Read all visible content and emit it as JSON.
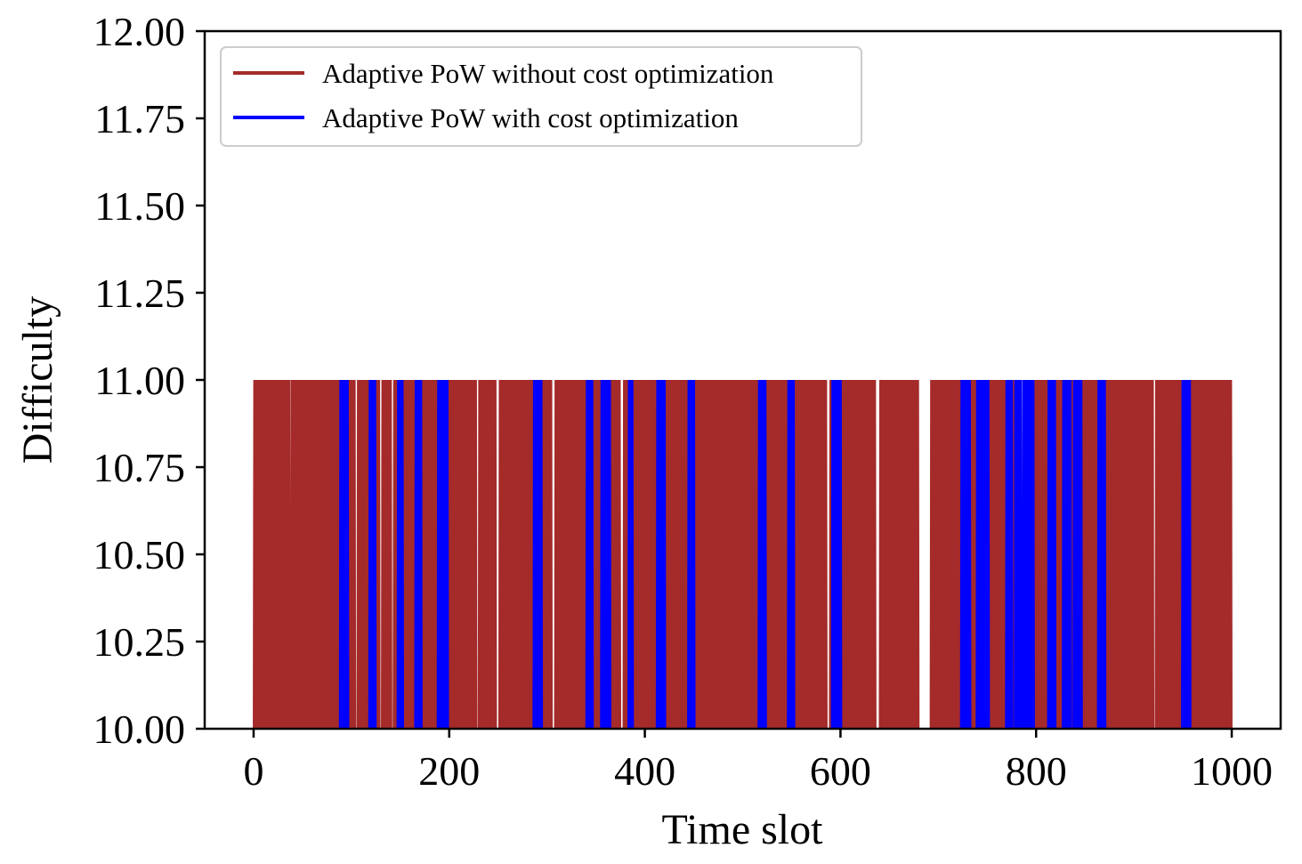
{
  "chart_data": {
    "type": "line",
    "title": "",
    "xlabel": "Time slot",
    "ylabel": "Difficulty",
    "xlim": [
      -50,
      1050
    ],
    "ylim": [
      10.0,
      12.0
    ],
    "x_ticks": [
      0,
      200,
      400,
      600,
      800,
      1000
    ],
    "x_tick_labels": [
      "0",
      "200",
      "400",
      "600",
      "800",
      "1000"
    ],
    "y_ticks": [
      10.0,
      10.25,
      10.5,
      10.75,
      11.0,
      11.25,
      11.5,
      11.75,
      12.0
    ],
    "y_tick_labels": [
      "10.00",
      "10.25",
      "10.50",
      "10.75",
      "11.00",
      "11.25",
      "11.50",
      "11.75",
      "12.00"
    ],
    "legend_position": "upper-left",
    "grid": false,
    "series": [
      {
        "name": "Adaptive PoW without cost optimization",
        "color": "#a52a2a",
        "description": "Oscillates between difficulty 10 and 11 at almost every time slot",
        "low_value": 10.0,
        "high_value": 11.0,
        "x_start": 0,
        "x_end": 1000,
        "gaps_at_low": [
          [
            37,
            38
          ],
          [
            104,
            106
          ],
          [
            129,
            131
          ],
          [
            141,
            143
          ],
          [
            228,
            230
          ],
          [
            248,
            251
          ],
          [
            305,
            308
          ],
          [
            375,
            378
          ],
          [
            586,
            589
          ],
          [
            636,
            640
          ],
          [
            680,
            692
          ],
          [
            784,
            786
          ],
          [
            920,
            922
          ]
        ]
      },
      {
        "name": "Adaptive PoW with cost optimization",
        "color": "#0000ff",
        "description": "Stays at difficulty 10 with occasional spikes to 11",
        "low_value": 10.0,
        "high_value": 11.0,
        "x_start": 0,
        "x_end": 1000,
        "spike_intervals": [
          [
            88,
            97
          ],
          [
            118,
            125
          ],
          [
            147,
            153
          ],
          [
            165,
            172
          ],
          [
            188,
            199
          ],
          [
            286,
            295
          ],
          [
            340,
            347
          ],
          [
            355,
            365
          ],
          [
            383,
            388
          ],
          [
            412,
            421
          ],
          [
            444,
            451
          ],
          [
            516,
            524
          ],
          [
            546,
            553
          ],
          [
            591,
            601
          ],
          [
            723,
            733
          ],
          [
            739,
            752
          ],
          [
            769,
            776
          ],
          [
            778,
            785
          ],
          [
            786,
            798
          ],
          [
            812,
            820
          ],
          [
            827,
            836
          ],
          [
            838,
            847
          ],
          [
            863,
            871
          ],
          [
            949,
            958
          ]
        ]
      }
    ]
  }
}
